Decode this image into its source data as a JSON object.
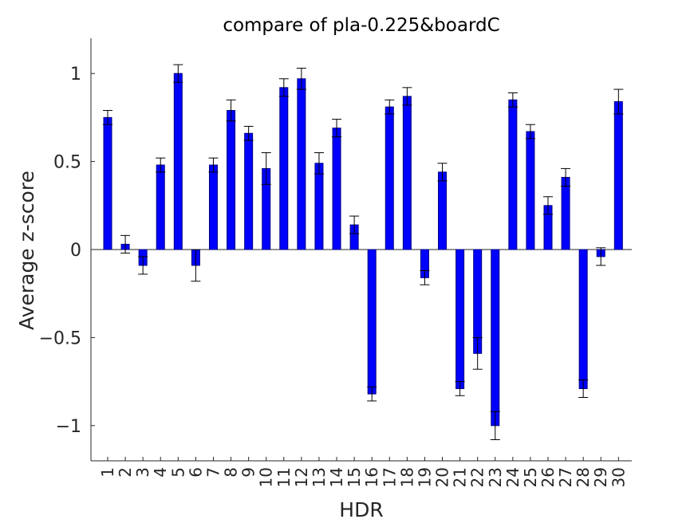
{
  "chart_data": {
    "type": "bar",
    "title": "compare of pla-0.225&boardC",
    "xlabel": "HDR",
    "ylabel": "Average z-score",
    "categories": [
      "1",
      "2",
      "3",
      "4",
      "5",
      "6",
      "7",
      "8",
      "9",
      "10",
      "11",
      "12",
      "13",
      "14",
      "15",
      "16",
      "17",
      "18",
      "19",
      "20",
      "21",
      "22",
      "23",
      "24",
      "25",
      "26",
      "27",
      "28",
      "29",
      "30"
    ],
    "values": [
      0.75,
      0.03,
      -0.09,
      0.48,
      1.0,
      -0.09,
      0.48,
      0.79,
      0.66,
      0.46,
      0.92,
      0.97,
      0.49,
      0.69,
      0.14,
      -0.82,
      0.81,
      0.87,
      -0.16,
      0.44,
      -0.79,
      -0.59,
      -1.0,
      0.85,
      0.67,
      0.25,
      0.41,
      -0.79,
      -0.04,
      0.84
    ],
    "errors": [
      0.04,
      0.05,
      0.05,
      0.04,
      0.05,
      0.09,
      0.04,
      0.06,
      0.04,
      0.09,
      0.05,
      0.06,
      0.06,
      0.05,
      0.05,
      0.04,
      0.04,
      0.05,
      0.04,
      0.05,
      0.04,
      0.09,
      0.08,
      0.04,
      0.04,
      0.05,
      0.05,
      0.05,
      0.05,
      0.07
    ],
    "ylim": [
      -1.2,
      1.2
    ],
    "yticks": [
      -1,
      -0.5,
      0,
      0.5,
      1
    ],
    "ytick_labels": [
      "−1",
      "−0.5",
      "0",
      "0.5",
      "1"
    ],
    "grid": false,
    "bar_color": "#0000ff",
    "bar_edge_color": "#000080",
    "errorbar_color": "#000000"
  }
}
